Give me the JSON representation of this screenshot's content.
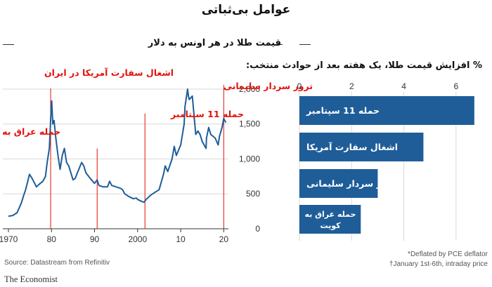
{
  "title": "عوامل بی‌ثباتی",
  "left_chart": {
    "subtitle": "قیمت طلا در هر اونس به دلار"
  },
  "right_chart": {
    "subtitle": "% افزایش قیمت طلا، یک هفته بعد از حوادث منتخب:"
  },
  "source": "Source: Datastream from Refinitiv",
  "notes": [
    "*Deflated by PCE deflator",
    "†January 1st-6th, intraday price"
  ],
  "brand": "The Economist",
  "colors": {
    "line": "#1f5d99",
    "bar": "#1f5d99",
    "event": "#e3120b",
    "grid": "#d9d9d9"
  },
  "chart_data": [
    {
      "type": "line",
      "title": "قیمت طلا در هر اونس به دلار",
      "x_ticks": [
        "1970",
        "80",
        "90",
        "2000",
        "10",
        "20"
      ],
      "x_tick_values": [
        1970,
        1980,
        1990,
        2000,
        2010,
        2020
      ],
      "y_ticks": [
        "0",
        "500",
        "1,000",
        "1,500",
        "2,000"
      ],
      "y_tick_values": [
        0,
        500,
        1000,
        1500,
        2000
      ],
      "xlim": [
        1970,
        2020.6
      ],
      "ylim": [
        0,
        2100
      ],
      "grid": true,
      "series": [
        {
          "x": [
            1970,
            1971,
            1972,
            1973,
            1973.6,
            1974,
            1974.9,
            1975.5,
            1976.5,
            1977,
            1978,
            1978.6,
            1979,
            1979.5,
            1979.9,
            1980.05,
            1980.3,
            1980.6,
            1981,
            1981.5,
            1982,
            1982.5,
            1983,
            1983.5,
            1984,
            1985,
            1985.5,
            1986,
            1987,
            1987.5,
            1988,
            1989,
            1990,
            1990.6,
            1991,
            1992,
            1993,
            1993.5,
            1994,
            1995,
            1996,
            1996.5,
            1997,
            1998,
            1999,
            1999.7,
            2000,
            2001,
            2001.5,
            2002,
            2003,
            2004,
            2005,
            2006,
            2006.4,
            2007,
            2008,
            2008.5,
            2009,
            2010,
            2010.8,
            2011,
            2011.6,
            2011.8,
            2012,
            2012.7,
            2013,
            2013.5,
            2014,
            2014.5,
            2015,
            2015.9,
            2016,
            2016.5,
            2017,
            2018,
            2018.7,
            2019,
            2019.6,
            2020,
            2020.5
          ],
          "y": [
            180,
            190,
            230,
            370,
            490,
            560,
            780,
            720,
            600,
            630,
            680,
            750,
            950,
            1150,
            1700,
            1830,
            1500,
            1550,
            1300,
            1050,
            850,
            1050,
            1150,
            950,
            900,
            700,
            720,
            800,
            950,
            900,
            800,
            720,
            650,
            700,
            620,
            600,
            600,
            680,
            620,
            600,
            580,
            560,
            500,
            460,
            430,
            440,
            420,
            390,
            380,
            420,
            480,
            520,
            560,
            780,
            900,
            820,
            1000,
            1180,
            1050,
            1200,
            1500,
            1750,
            2000,
            1900,
            1850,
            1900,
            1700,
            1350,
            1400,
            1350,
            1250,
            1150,
            1300,
            1450,
            1350,
            1300,
            1200,
            1320,
            1450,
            1580,
            1520
          ]
        }
      ],
      "annotations": [
        {
          "label": "اشغال سفارت آمریکا در ایران",
          "x": 1979.8,
          "y": 1990
        },
        {
          "label": "حمله عراق به کویت",
          "x": 1990.6,
          "y": 1130
        },
        {
          "label": "حمله 11 سپتامبر",
          "x": 2001.7,
          "y": 1630
        },
        {
          "label": "ترور سردار سلیمانی",
          "x": 2020.0,
          "y": 2040
        }
      ]
    },
    {
      "type": "bar",
      "title": "% افزایش قیمت طلا، یک هفته بعد از حوادث منتخب:",
      "categories": [
        "حمله 11 سپتامبر",
        "اشغال سفارت آمریکا",
        "ترور سردار سلیمانی",
        "حمله عراق به کویت"
      ],
      "values": [
        6.7,
        4.75,
        3.0,
        2.35
      ],
      "x_ticks": [
        "0",
        "2",
        "4",
        "6"
      ],
      "x_tick_values": [
        0,
        2,
        4,
        6
      ],
      "xlim": [
        0,
        7
      ],
      "grid": true
    }
  ]
}
